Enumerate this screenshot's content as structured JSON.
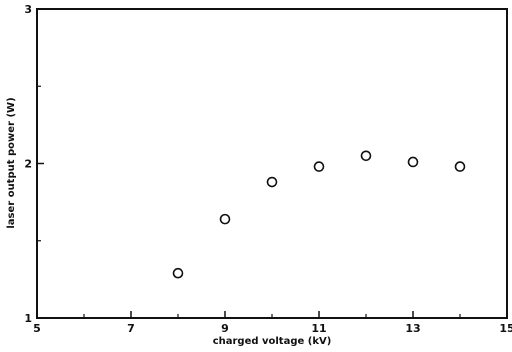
{
  "chart_data": {
    "type": "scatter",
    "title": "",
    "xlabel": "charged voltage (kV)",
    "ylabel": "laser output power (W)",
    "xlim": [
      5,
      15
    ],
    "ylim": [
      1,
      3
    ],
    "xticks": [
      5,
      7,
      9,
      11,
      13,
      15
    ],
    "yticks": [
      1,
      2,
      3
    ],
    "x_tick_labels": [
      "5",
      "7",
      "9",
      "11",
      "13",
      "15"
    ],
    "y_tick_labels": [
      "1",
      "2",
      "3"
    ],
    "grid": false,
    "legend": "none",
    "marker": "open-circle",
    "series": [
      {
        "x": [
          8,
          9,
          10,
          11,
          12,
          13,
          14
        ],
        "y": [
          1.29,
          1.64,
          1.88,
          1.98,
          2.05,
          2.01,
          1.98
        ]
      }
    ]
  }
}
